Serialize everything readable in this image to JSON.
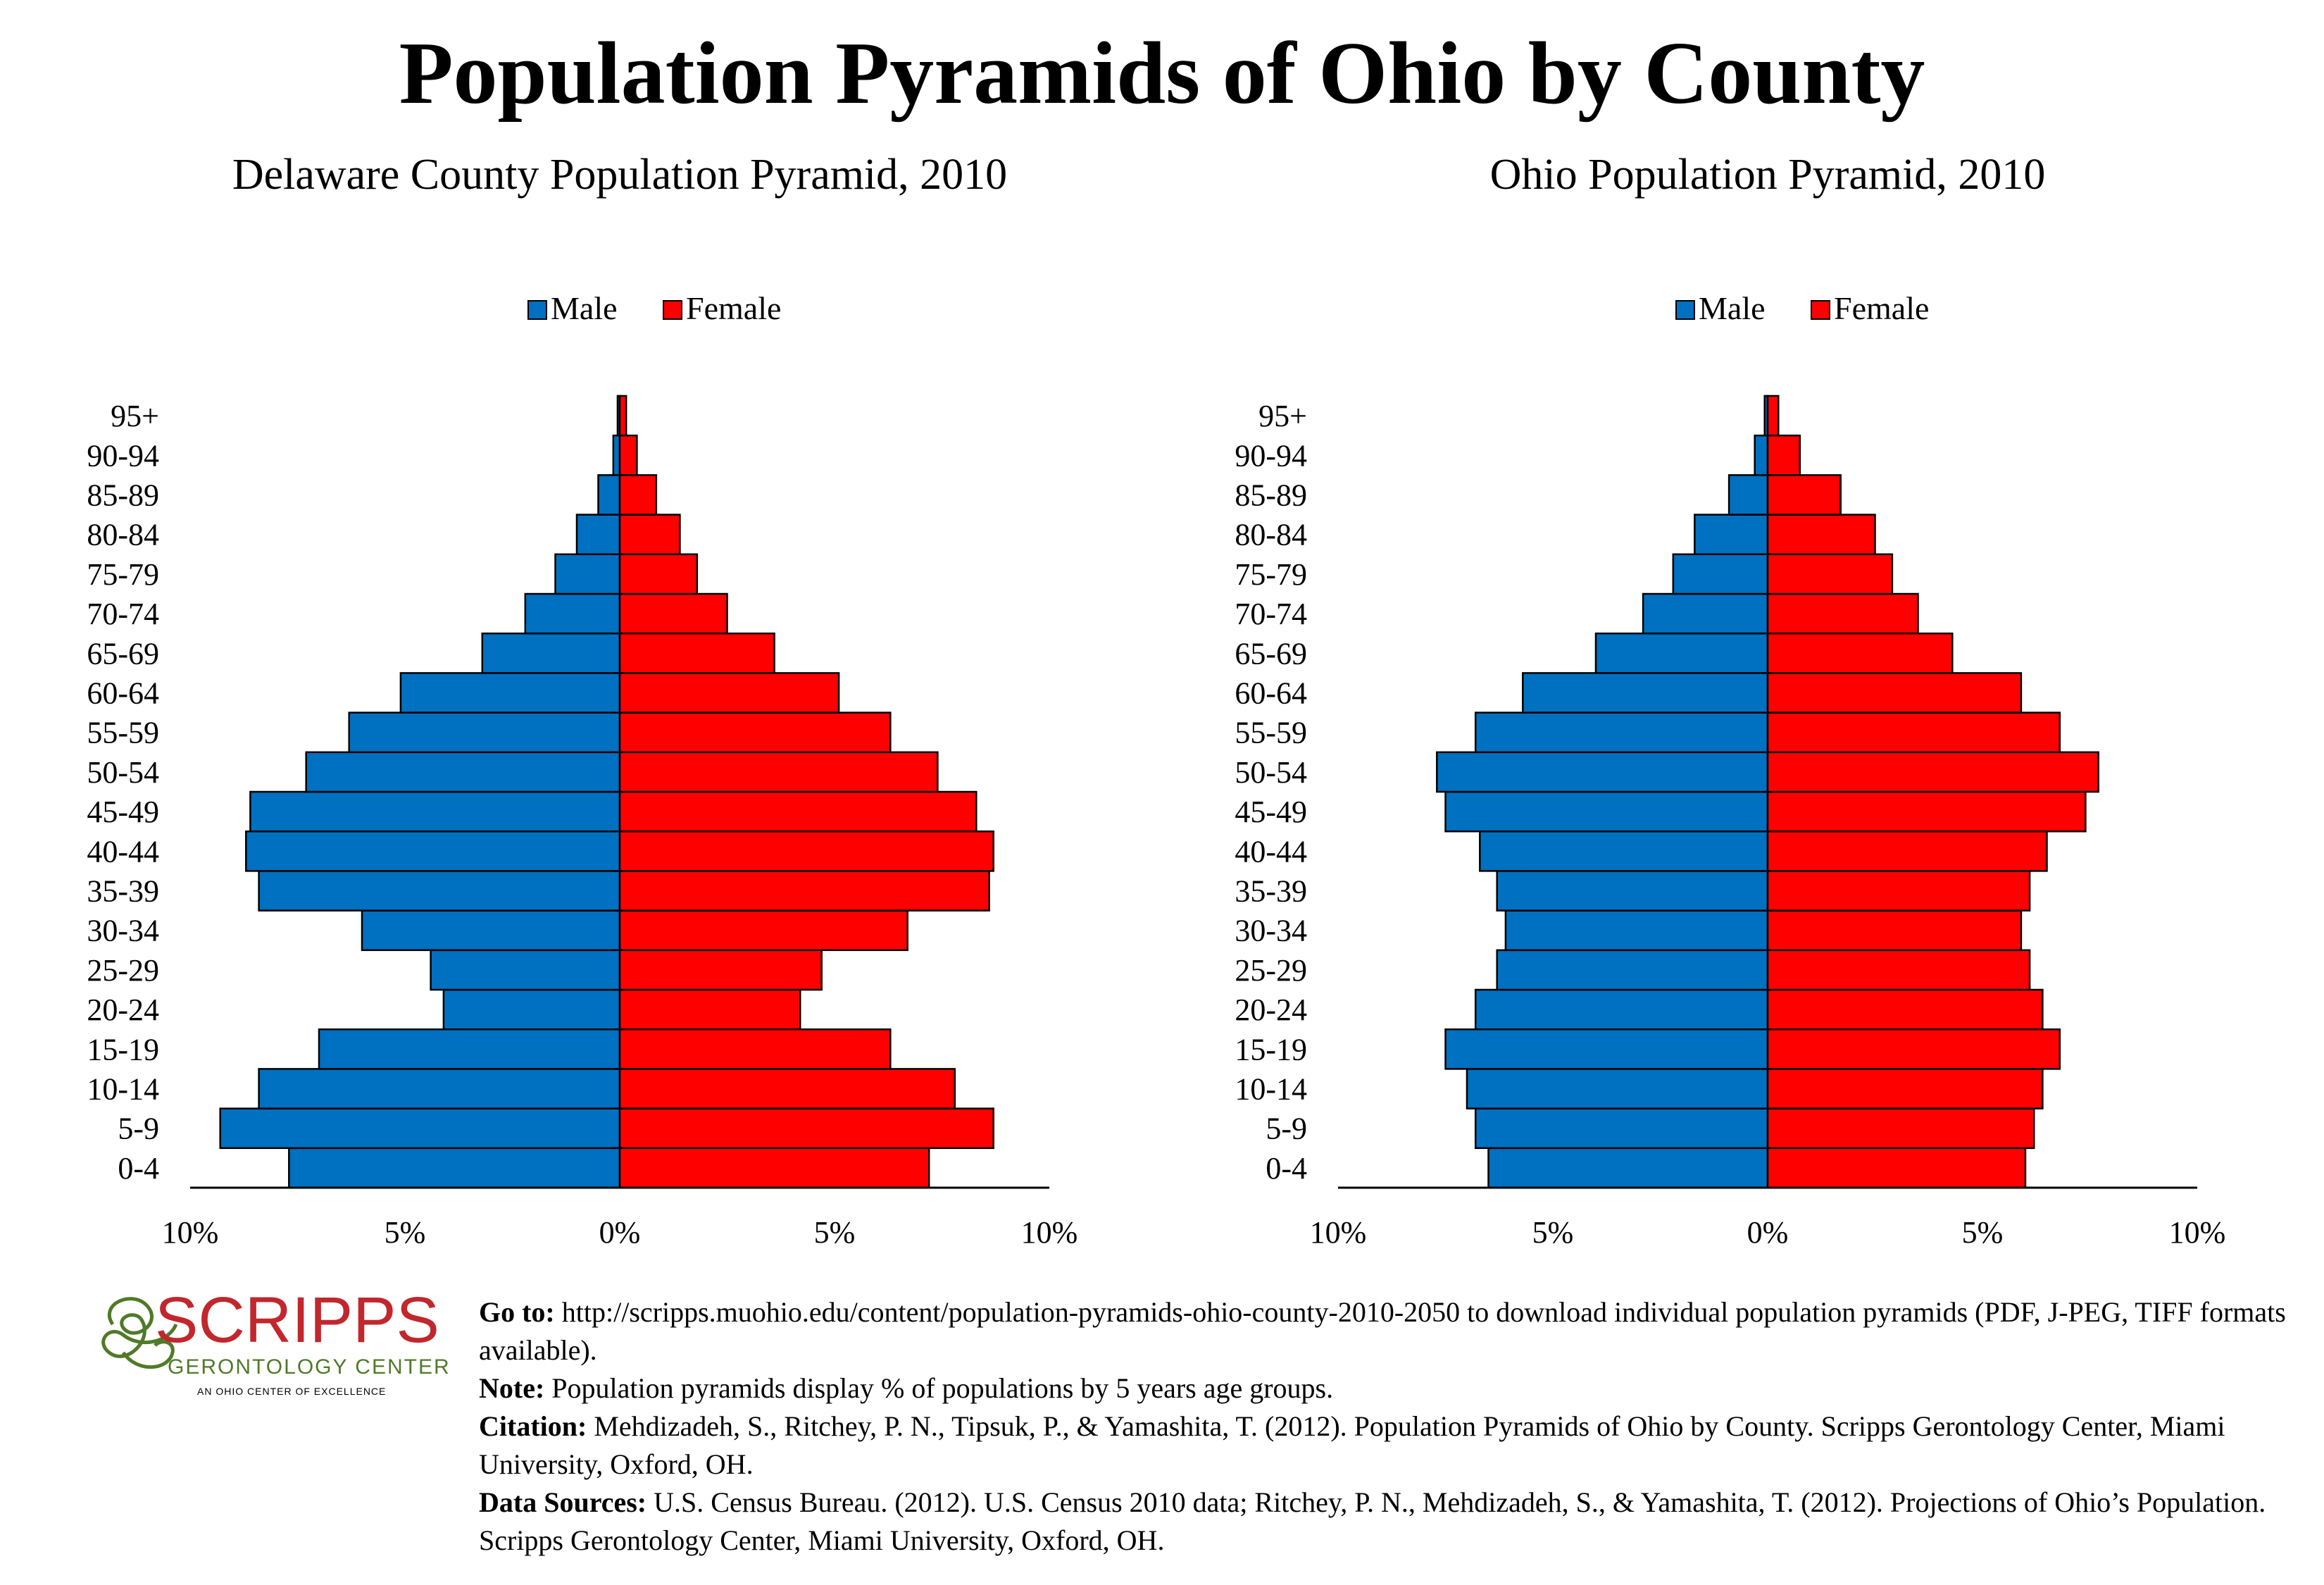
{
  "title": "Population Pyramids of Ohio by County",
  "chart_data": [
    {
      "type": "bar",
      "orientation": "horizontal",
      "title": "Delaware County Population Pyramid, 2010",
      "categories": [
        "0-4",
        "5-9",
        "10-14",
        "15-19",
        "20-24",
        "25-29",
        "30-34",
        "35-39",
        "40-44",
        "45-49",
        "50-54",
        "55-59",
        "60-64",
        "65-69",
        "70-74",
        "75-79",
        "80-84",
        "85-89",
        "90-94",
        "95+"
      ],
      "series": [
        {
          "name": "Male",
          "color": "#0070C0",
          "values": [
            7.7,
            9.3,
            8.4,
            7.0,
            4.1,
            4.4,
            6.0,
            8.4,
            8.7,
            8.6,
            7.3,
            6.3,
            5.1,
            3.2,
            2.2,
            1.5,
            1.0,
            0.5,
            0.15,
            0.05
          ]
        },
        {
          "name": "Female",
          "color": "#FF0000",
          "values": [
            7.2,
            8.7,
            7.8,
            6.3,
            4.2,
            4.7,
            6.7,
            8.6,
            8.7,
            8.3,
            7.4,
            6.3,
            5.1,
            3.6,
            2.5,
            1.8,
            1.4,
            0.85,
            0.4,
            0.15
          ]
        }
      ],
      "x_ticks": [
        "10%",
        "5%",
        "0%",
        "5%",
        "10%"
      ],
      "xlim": [
        -10,
        10
      ],
      "legend": "top"
    },
    {
      "type": "bar",
      "orientation": "horizontal",
      "title": "Ohio Population Pyramid, 2010",
      "categories": [
        "0-4",
        "5-9",
        "10-14",
        "15-19",
        "20-24",
        "25-29",
        "30-34",
        "35-39",
        "40-44",
        "45-49",
        "50-54",
        "55-59",
        "60-64",
        "65-69",
        "70-74",
        "75-79",
        "80-84",
        "85-89",
        "90-94",
        "95+"
      ],
      "series": [
        {
          "name": "Male",
          "color": "#0070C0",
          "values": [
            6.5,
            6.8,
            7.0,
            7.5,
            6.8,
            6.3,
            6.1,
            6.3,
            6.7,
            7.5,
            7.7,
            6.8,
            5.7,
            4.0,
            2.9,
            2.2,
            1.7,
            0.9,
            0.3,
            0.07
          ]
        },
        {
          "name": "Female",
          "color": "#FF0000",
          "values": [
            6.0,
            6.2,
            6.4,
            6.8,
            6.4,
            6.1,
            5.9,
            6.1,
            6.5,
            7.4,
            7.7,
            6.8,
            5.9,
            4.3,
            3.5,
            2.9,
            2.5,
            1.7,
            0.75,
            0.25
          ]
        }
      ],
      "x_ticks": [
        "10%",
        "5%",
        "0%",
        "5%",
        "10%"
      ],
      "xlim": [
        -10,
        10
      ],
      "legend": "top"
    }
  ],
  "footer": {
    "logo": {
      "name": "SCRIPPS",
      "line2": "GERONTOLOGY CENTER",
      "line3": "AN OHIO CENTER OF EXCELLENCE"
    },
    "goto_label": "Go to:",
    "goto_text": "http://scripps.muohio.edu/content/population-pyramids-ohio-county-2010-2050 to download individual population pyramids (PDF, J-PEG, TIFF formats available).",
    "note_label": "Note:",
    "note_text": "Population pyramids display % of populations by 5 years age groups.",
    "citation_label": "Citation:",
    "citation_text": "Mehdizadeh, S., Ritchey, P. N., Tipsuk, P., & Yamashita, T. (2012). Population Pyramids of Ohio by County. Scripps Gerontology Center, Miami University, Oxford, OH.",
    "sources_label": "Data Sources:",
    "sources_text": "U.S. Census Bureau. (2012). U.S. Census 2010 data; Ritchey, P. N., Mehdizadeh, S., & Yamashita, T. (2012). Projections of Ohio’s Population. Scripps Gerontology Center, Miami University, Oxford, OH."
  }
}
